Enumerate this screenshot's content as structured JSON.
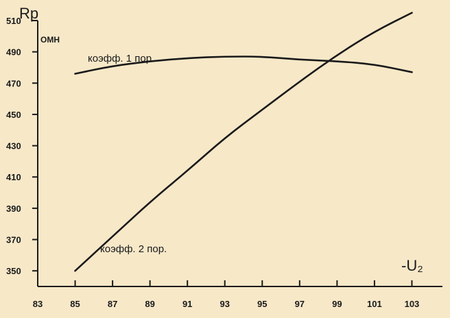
{
  "colors": {
    "background": "#f7e8c8",
    "ink": "#1a1a1a"
  },
  "chart_data": {
    "type": "line",
    "ylabel": "Rp",
    "yunit": "OMH",
    "xlabel": "-U₂",
    "xlim": [
      83,
      105
    ],
    "ylim": [
      340,
      510
    ],
    "x_ticks": [
      83,
      85,
      87,
      89,
      91,
      93,
      95,
      97,
      99,
      101,
      103
    ],
    "x_tick_labels": [
      "83",
      "85",
      "87",
      "89",
      "91",
      "93",
      "95",
      "97",
      "99",
      "101",
      "103"
    ],
    "y_ticks": [
      350,
      370,
      390,
      410,
      430,
      450,
      470,
      490,
      510
    ],
    "y_tick_labels": [
      "350",
      "370",
      "390",
      "410",
      "430",
      "450",
      "470",
      "490",
      "510"
    ],
    "series": [
      {
        "name": "коэфф. 1 пор.",
        "x": [
          85,
          87,
          89,
          91,
          93,
          95,
          97,
          99,
          101,
          103
        ],
        "values": [
          476,
          481,
          484,
          486,
          487,
          487,
          485,
          484,
          482,
          477
        ]
      },
      {
        "name": "коэфф. 2 пор.",
        "x": [
          85,
          87,
          89,
          91,
          93,
          95,
          97,
          99,
          101,
          103
        ],
        "values": [
          350,
          372,
          394,
          414,
          435,
          453,
          471,
          488,
          503,
          515
        ]
      }
    ]
  }
}
